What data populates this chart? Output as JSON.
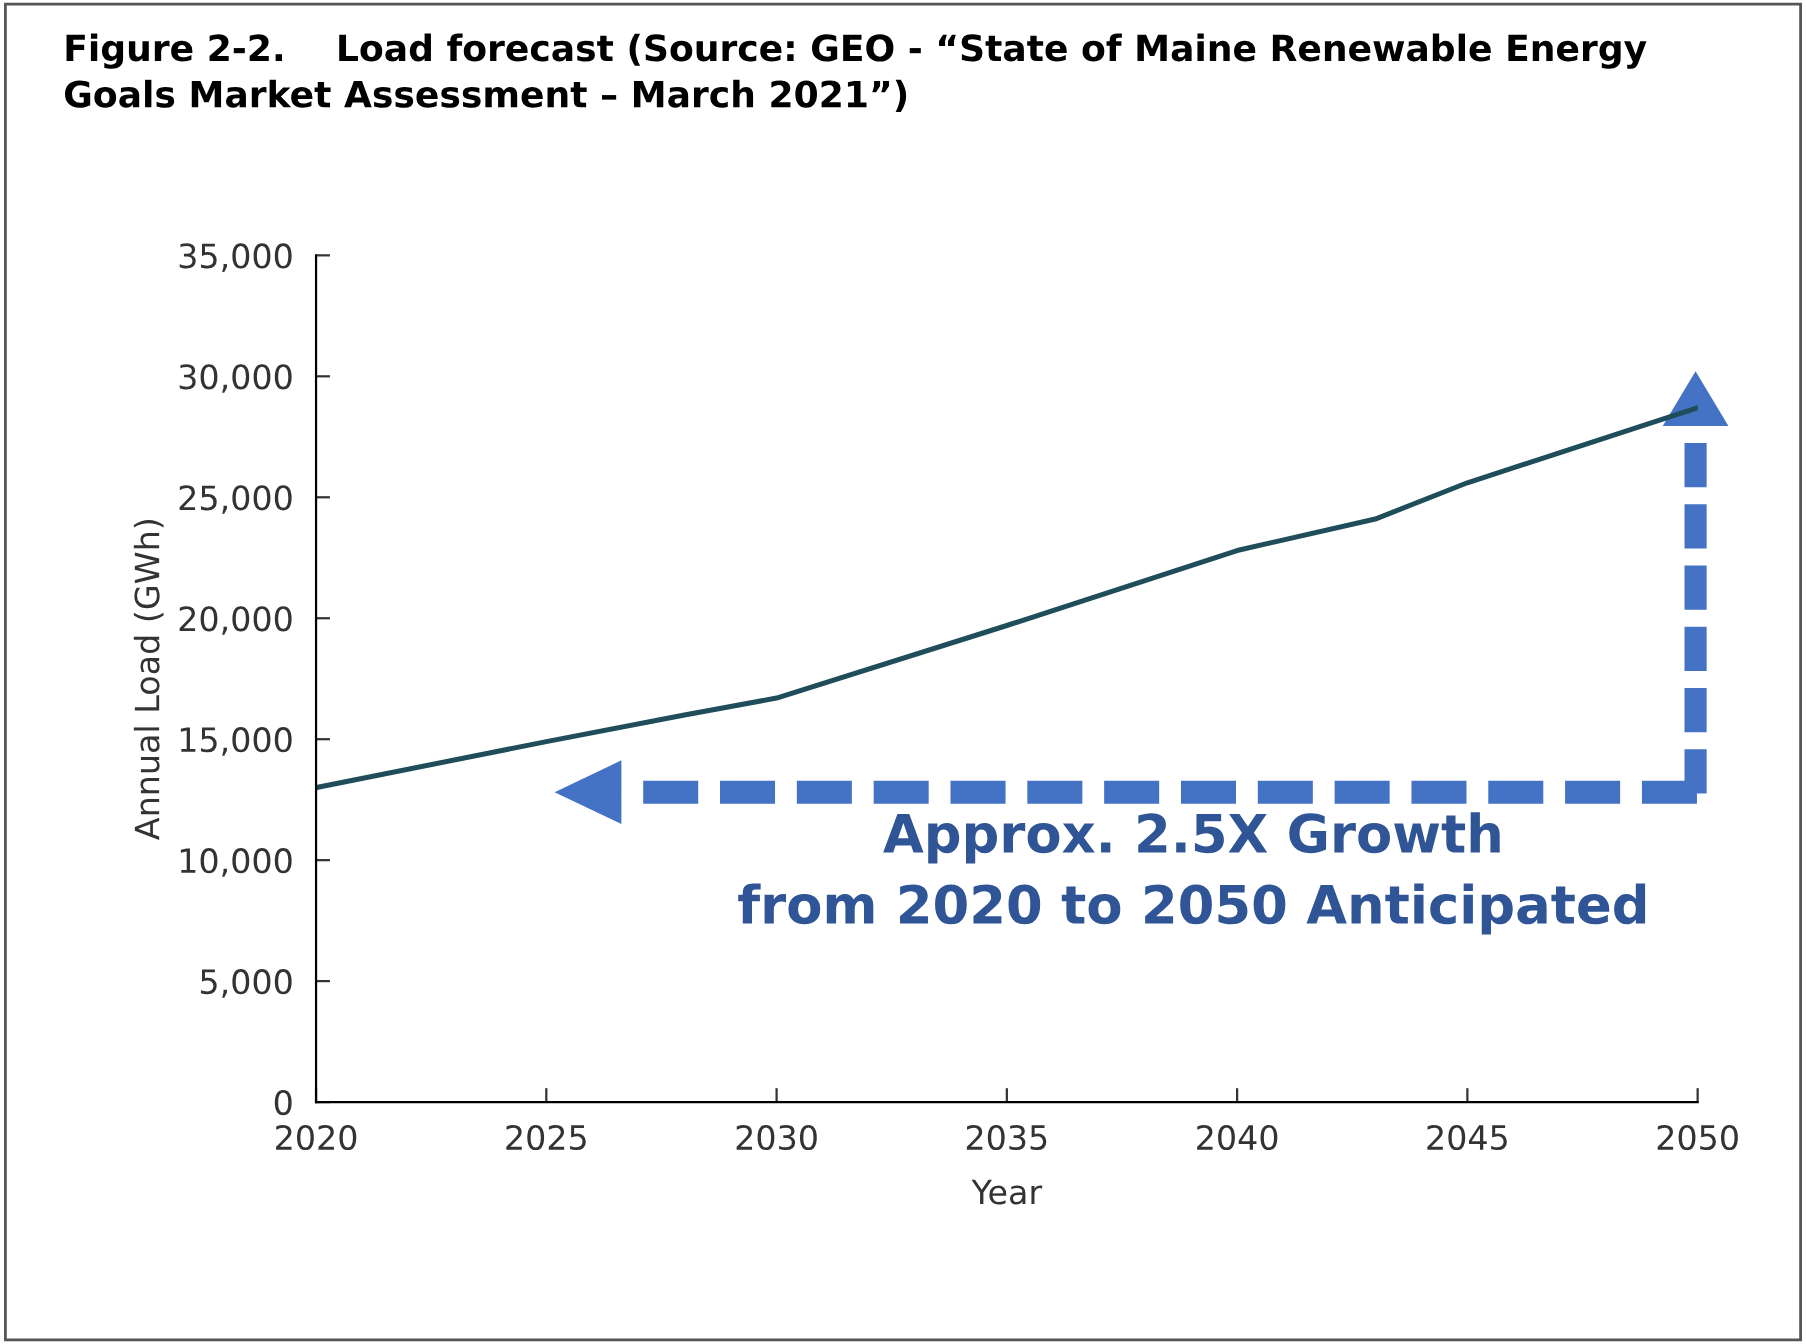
{
  "chart_data": {
    "type": "line",
    "title": "Figure 2-2.    Load forecast (Source: GEO - “State of Maine Renewable Energy\nGoals Market Assessment – March 2021”)",
    "xlabel": "Year",
    "ylabel": "Annual Load (GWh)",
    "x": [
      2020,
      2025,
      2028,
      2030,
      2035,
      2040,
      2043,
      2045,
      2050
    ],
    "series": [
      {
        "color": "#1f4e5a",
        "values": [
          13000,
          14900,
          16000,
          16700,
          19700,
          22800,
          24100,
          25600,
          28700
        ]
      }
    ],
    "xlim": [
      2020,
      2050
    ],
    "xticks": [
      2020,
      2025,
      2030,
      2035,
      2040,
      2045,
      2050
    ],
    "ylim": [
      0,
      35000
    ],
    "yticks": [
      {
        "value": 0,
        "label": "0"
      },
      {
        "value": 5000,
        "label": "5,000"
      },
      {
        "value": 10000,
        "label": "10,000"
      },
      {
        "value": 15000,
        "label": "15,000"
      },
      {
        "value": 20000,
        "label": "20,000"
      },
      {
        "value": 25000,
        "label": "25,000"
      },
      {
        "value": 30000,
        "label": "30,000"
      },
      {
        "value": 35000,
        "label": "35,000"
      }
    ],
    "grid": false,
    "legend": false,
    "marker": "none",
    "line_style": "solid",
    "annotations": [
      "Approx. 2.5X Growth\nfrom 2020 to 2050 Anticipated"
    ]
  }
}
